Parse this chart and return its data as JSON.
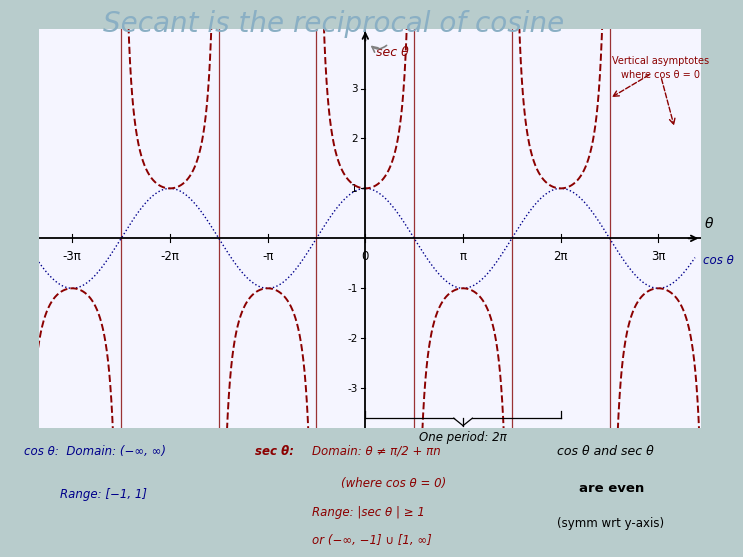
{
  "title": "Secant is the reciprocal of cosine",
  "title_color": "#8AAFC4",
  "title_fontsize": 20,
  "bg_figure": "#B8CCCC",
  "plot_bg": "#F5F5FF",
  "cos_color": "#00008B",
  "sec_color": "#8B0000",
  "asymptote_color": "#8B1010",
  "axis_color": "#000000",
  "xlim": [
    -10.5,
    10.8
  ],
  "ylim": [
    -3.8,
    4.2
  ],
  "yticks": [
    -3,
    -2,
    -1,
    1,
    2,
    3
  ],
  "xtick_labels": [
    "-3π",
    "-2π",
    "-π",
    "0",
    "π",
    "2π",
    "3π"
  ],
  "xtick_vals": [
    -9.42477796,
    -6.28318531,
    -3.14159265,
    0,
    3.14159265,
    6.28318531,
    9.42477796
  ],
  "sec_label": "sec θ",
  "cos_label": "cos θ",
  "theta_label": "θ",
  "asymptote_label": "Vertical asymptotes\nwhere cos θ = 0",
  "one_period_label": "One period: 2π",
  "cos_domain": "cos θ:  Domain: (−∞, ∞)",
  "cos_range": "Range: [−1, 1]",
  "sec_domain_title": "sec θ:",
  "sec_domain": "Domain: θ ≠ π/2 + πn",
  "sec_domain2": "(where cos θ = 0)",
  "sec_range": "Range: |sec θ | ≥ 1",
  "sec_range2": "or (−∞, −1] ∪ [1, ∞]",
  "even_text1": "cos θ and sec θ",
  "even_text2": "are even",
  "even_text3": "(symm wrt y-axis)"
}
